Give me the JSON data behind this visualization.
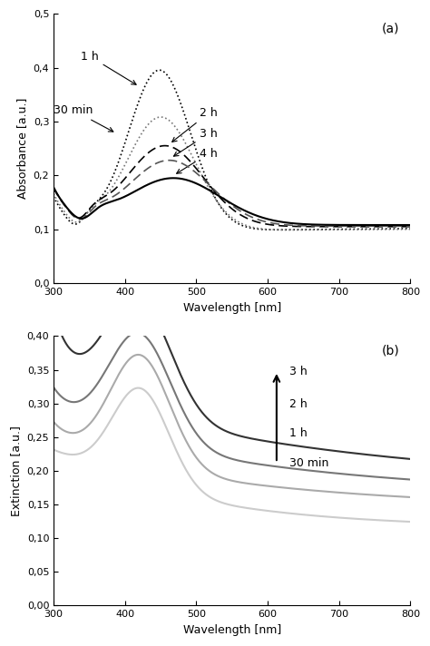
{
  "panel_a_label": "(a)",
  "panel_b_label": "(b)",
  "xlabel": "Wavelength [nm]",
  "ylabel_a": "Absorbance [a.u.]",
  "ylabel_b": "Extinction [a.u.]",
  "xlim": [
    300,
    800
  ],
  "ylim_a": [
    0.0,
    0.5
  ],
  "ylim_b": [
    0.0,
    0.4
  ],
  "yticks_a": [
    0.0,
    0.1,
    0.2,
    0.3,
    0.4,
    0.5
  ],
  "yticks_b": [
    0.0,
    0.05,
    0.1,
    0.15,
    0.2,
    0.25,
    0.3,
    0.35,
    0.4
  ],
  "xticks": [
    300,
    400,
    500,
    600,
    700,
    800
  ],
  "ytick_labels_a": [
    "0,0",
    "0,1",
    "0,2",
    "0,3",
    "0,4",
    "0,5"
  ],
  "ytick_labels_b": [
    "0,00",
    "0,05",
    "0,10",
    "0,15",
    "0,20",
    "0,25",
    "0,30",
    "0,35",
    "0,40"
  ],
  "font_size": 9,
  "tick_font_size": 8
}
